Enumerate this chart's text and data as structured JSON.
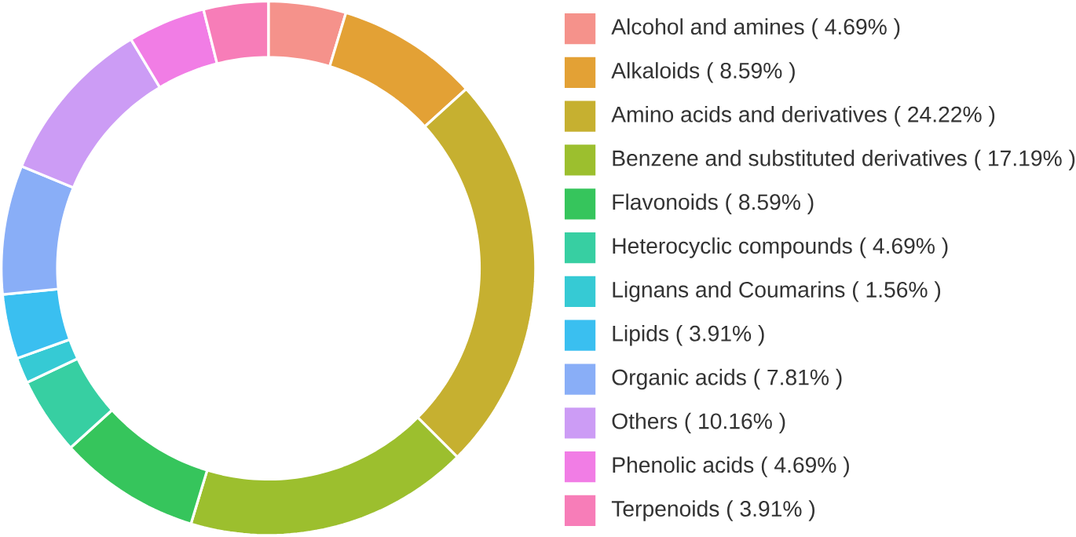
{
  "chart_data": {
    "type": "donut",
    "categories": [
      "Alcohol and amines ( 4.69% )",
      "Alkaloids ( 8.59% )",
      "Amino acids and derivatives ( 24.22% )",
      "Benzene and substituted derivatives ( 17.19% )",
      "Flavonoids ( 8.59% )",
      "Heterocyclic compounds ( 4.69% )",
      "Lignans and Coumarins ( 1.56% )",
      "Lipids ( 3.91% )",
      "Organic acids ( 7.81% )",
      "Others ( 10.16% )",
      "Phenolic acids ( 4.69% )",
      "Terpenoids ( 3.91% )"
    ],
    "values": [
      4.69,
      8.59,
      24.22,
      17.19,
      8.59,
      4.69,
      1.56,
      3.91,
      7.81,
      10.16,
      4.69,
      3.91
    ],
    "colors": [
      "#F5928B",
      "#E3A135",
      "#C6B030",
      "#9CBF2E",
      "#36C55C",
      "#37CFA2",
      "#36CAD4",
      "#3ABFF0",
      "#89AEF7",
      "#CC9CF5",
      "#F17DE5",
      "#F77DB8"
    ],
    "legend": "right"
  }
}
